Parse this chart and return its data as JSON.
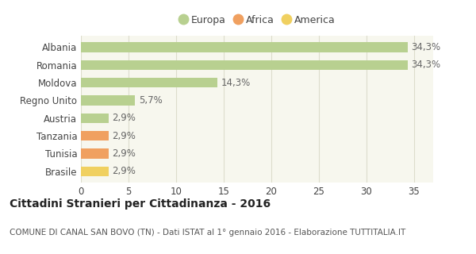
{
  "categories": [
    "Brasile",
    "Tunisia",
    "Tanzania",
    "Austria",
    "Regno Unito",
    "Moldova",
    "Romania",
    "Albania"
  ],
  "values": [
    2.9,
    2.9,
    2.9,
    2.9,
    5.7,
    14.3,
    34.3,
    34.3
  ],
  "colors": [
    "#f0d060",
    "#f0a060",
    "#f0a060",
    "#b8d090",
    "#b8d090",
    "#b8d090",
    "#b8d090",
    "#b8d090"
  ],
  "labels": [
    "2,9%",
    "2,9%",
    "2,9%",
    "2,9%",
    "5,7%",
    "14,3%",
    "34,3%",
    "34,3%"
  ],
  "legend": [
    {
      "label": "Europa",
      "color": "#b8d090"
    },
    {
      "label": "Africa",
      "color": "#f0a060"
    },
    {
      "label": "America",
      "color": "#f0d060"
    }
  ],
  "xlim": [
    0,
    37
  ],
  "xticks": [
    0,
    5,
    10,
    15,
    20,
    25,
    30,
    35
  ],
  "title": "Cittadini Stranieri per Cittadinanza - 2016",
  "subtitle": "COMUNE DI CANAL SAN BOVO (TN) - Dati ISTAT al 1° gennaio 2016 - Elaborazione TUTTITALIA.IT",
  "bg_color": "#ffffff",
  "plot_bg_color": "#f7f7ee",
  "grid_color": "#ddddcc",
  "bar_height": 0.55,
  "title_fontsize": 10,
  "subtitle_fontsize": 7.5,
  "label_fontsize": 8.5,
  "tick_fontsize": 8.5,
  "legend_fontsize": 9
}
